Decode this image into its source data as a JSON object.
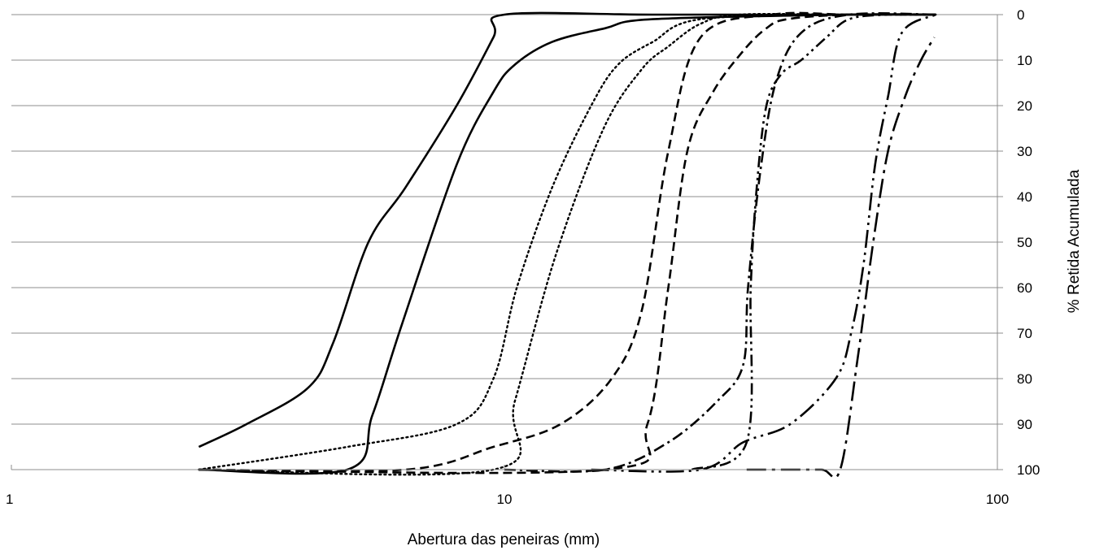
{
  "chart_data": {
    "type": "line",
    "xlabel": "Abertura das peneiras (mm)",
    "ylabel": "% Retida Acumulada",
    "xscale": "log",
    "xlim": [
      1,
      100
    ],
    "ylim": [
      0,
      100
    ],
    "y_inverted": true,
    "y_axis_side": "right",
    "grid": "horizontal",
    "legend": "none",
    "x_ticks": [
      "1",
      "10",
      "100"
    ],
    "y_ticks": [
      "0",
      "10",
      "20",
      "30",
      "40",
      "50",
      "60",
      "70",
      "80",
      "90",
      "100"
    ],
    "series": [
      {
        "style": "solid",
        "x": [
          2.4,
          3.0,
          4.0,
          4.5,
          5.3,
          6.3,
          8.0,
          9.5,
          10,
          20,
          50,
          75
        ],
        "y": [
          95,
          90,
          82,
          72,
          50,
          38,
          20,
          5,
          0,
          0,
          0,
          0
        ]
      },
      {
        "style": "solid",
        "x": [
          2.4,
          4.8,
          5.4,
          6.2,
          8.0,
          9.5,
          10.5,
          12.5,
          16,
          20,
          50,
          75
        ],
        "y": [
          100,
          100,
          88,
          68,
          33,
          17,
          11,
          6,
          3,
          1,
          0,
          0
        ]
      },
      {
        "style": "dotted",
        "x": [
          2.4,
          4.8,
          8.0,
          9.5,
          10.6,
          12.5,
          15,
          17,
          20,
          25,
          50,
          75
        ],
        "y": [
          100,
          95,
          90,
          80,
          60,
          38,
          20,
          11,
          6,
          1,
          0,
          0
        ]
      },
      {
        "style": "dotted",
        "x": [
          2.4,
          9.5,
          10.5,
          12.7,
          15.9,
          19.0,
          21.5,
          25.0,
          30,
          50,
          75
        ],
        "y": [
          100,
          100,
          85,
          53,
          25,
          12,
          7,
          2,
          0,
          0,
          0
        ]
      },
      {
        "style": "dashed",
        "x": [
          2.4,
          6.3,
          9.5,
          13,
          16.5,
          19.0,
          21.5,
          25.0,
          35,
          50,
          75
        ],
        "y": [
          100,
          100,
          95,
          90,
          80,
          65,
          30,
          5,
          0,
          0,
          0
        ]
      },
      {
        "style": "dashed",
        "x": [
          2.4,
          16,
          19.5,
          21.5,
          23.5,
          26.5,
          30.5,
          34,
          37.5,
          50,
          75
        ],
        "y": [
          100,
          100,
          90,
          60,
          30,
          17,
          8,
          3,
          1,
          0,
          0
        ]
      },
      {
        "style": "dash-dot",
        "x": [
          10,
          16,
          21.5,
          27,
          30.5,
          31.2,
          33,
          35.5,
          40,
          50,
          75
        ],
        "y": [
          100,
          100,
          94,
          85,
          77,
          60,
          35,
          15,
          4,
          0,
          0
        ]
      },
      {
        "style": "dash-dot-dot",
        "x": [
          24,
          31,
          31.6,
          32.5,
          34.0,
          36.5,
          40,
          45,
          50,
          60,
          75
        ],
        "y": [
          100,
          94,
          60,
          38,
          20,
          13,
          10,
          5,
          1,
          0,
          0
        ]
      },
      {
        "style": "long-dash-dot-dot",
        "x": [
          15,
          25,
          30.5,
          38,
          47,
          50.5,
          53.5,
          56.5,
          60,
          64,
          75
        ],
        "y": [
          100,
          100,
          94,
          90,
          80,
          70,
          55,
          33,
          18,
          4,
          0
        ]
      },
      {
        "style": "long-dash-dot",
        "x": [
          31,
          37,
          44,
          48,
          52,
          56,
          60,
          65,
          70,
          74.5
        ],
        "y": [
          100,
          100,
          100,
          100,
          76,
          50,
          30,
          18,
          10,
          5
        ]
      }
    ]
  }
}
